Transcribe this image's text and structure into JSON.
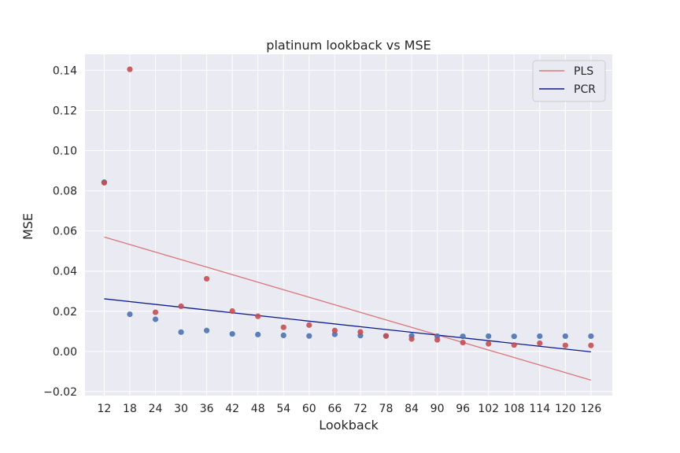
{
  "chart_data": {
    "type": "scatter",
    "title": "platinum lookback vs MSE",
    "xlabel": "Lookback",
    "ylabel": "MSE",
    "x": [
      12,
      18,
      24,
      30,
      36,
      42,
      48,
      54,
      60,
      66,
      72,
      78,
      84,
      90,
      96,
      102,
      108,
      114,
      120,
      126
    ],
    "x_ticks": [
      "12",
      "18",
      "24",
      "30",
      "36",
      "42",
      "48",
      "54",
      "60",
      "66",
      "72",
      "78",
      "84",
      "90",
      "96",
      "102",
      "108",
      "114",
      "120",
      "126"
    ],
    "xlim": [
      7.5,
      131
    ],
    "ylim": [
      -0.022,
      0.148
    ],
    "y_ticks": [
      -0.02,
      0.0,
      0.02,
      0.04,
      0.06,
      0.08,
      0.1,
      0.12,
      0.14
    ],
    "y_tick_labels": [
      "−0.02",
      "0.00",
      "0.02",
      "0.04",
      "0.06",
      "0.08",
      "0.10",
      "0.12",
      "0.14"
    ],
    "grid": true,
    "legend_position": "top-right",
    "series": [
      {
        "name": "PLS",
        "color": "#c44e52",
        "line_color": "#d9777a",
        "values": [
          0.084,
          0.1405,
          0.0195,
          0.0225,
          0.0362,
          0.0201,
          0.0175,
          0.012,
          0.0131,
          0.0104,
          0.0097,
          0.0077,
          0.0062,
          0.0058,
          0.0044,
          0.0038,
          0.0032,
          0.0041,
          0.003,
          0.003
        ],
        "fit_line": {
          "x": [
            12,
            126
          ],
          "y": [
            0.057,
            -0.0143
          ]
        }
      },
      {
        "name": "PCR",
        "color": "#4c72b0",
        "line_color": "#0c1a8a",
        "values": [
          0.0843,
          0.0185,
          0.016,
          0.0096,
          0.0104,
          0.0087,
          0.0084,
          0.008,
          0.0077,
          0.0085,
          0.0079,
          0.0077,
          0.0078,
          0.0076,
          0.0075,
          0.0076,
          0.0075,
          0.0076,
          0.0076,
          0.0076
        ],
        "fit_line": {
          "x": [
            12,
            126
          ],
          "y": [
            0.0262,
            -0.0002
          ]
        }
      }
    ]
  }
}
